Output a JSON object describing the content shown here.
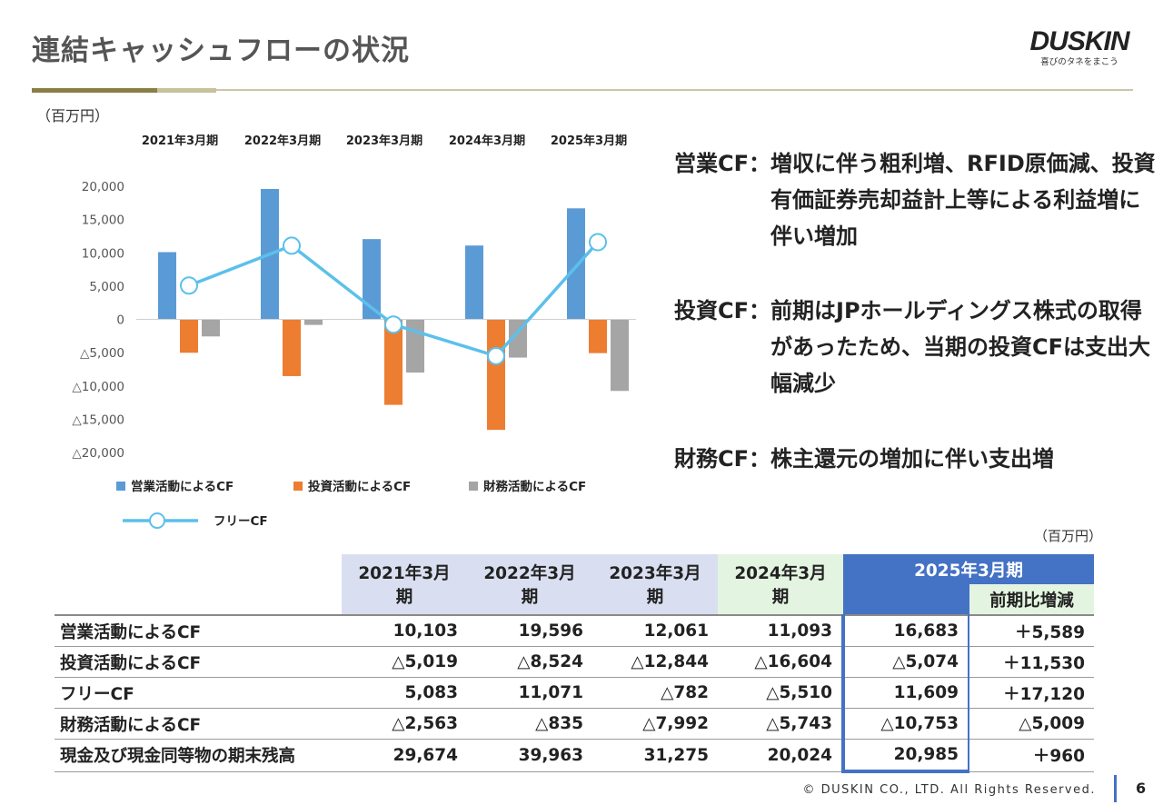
{
  "header": {
    "title": "連結キャッシュフローの状況",
    "logo_text": "DUSKIN",
    "logo_tagline": "喜びのタネをまこう"
  },
  "chart_unit": "（百万円）",
  "table_unit": "（百万円）",
  "chart_data": {
    "type": "bar",
    "categories": [
      "2021年3月期",
      "2022年3月期",
      "2023年3月期",
      "2024年3月期",
      "2025年3月期"
    ],
    "series": [
      {
        "name": "営業活動によるCF",
        "type": "bar",
        "color": "#5b9bd5",
        "values": [
          10103,
          19596,
          12061,
          11093,
          16683
        ]
      },
      {
        "name": "投資活動によるCF",
        "type": "bar",
        "color": "#ed7d31",
        "values": [
          -5019,
          -8524,
          -12844,
          -16604,
          -5074
        ]
      },
      {
        "name": "財務活動によるCF",
        "type": "bar",
        "color": "#a5a5a5",
        "values": [
          -2563,
          -835,
          -7992,
          -5743,
          -10753
        ]
      },
      {
        "name": "フリーCF",
        "type": "line",
        "color": "#5bc0eb",
        "values": [
          5083,
          11071,
          -782,
          -5510,
          11609
        ]
      }
    ],
    "ylim": [
      -20000,
      20000
    ],
    "yticks": [
      20000,
      15000,
      10000,
      5000,
      0,
      -5000,
      -10000,
      -15000,
      -20000
    ],
    "ytick_labels": [
      "20,000",
      "15,000",
      "10,000",
      "5,000",
      "0",
      "△5,000",
      "△10,000",
      "△15,000",
      "△20,000"
    ],
    "grid": false,
    "legend_position": "bottom"
  },
  "comments": [
    {
      "label": "営業CF：",
      "text": "増収に伴う粗利増、RFID原価減、投資有価証券売却益計上等による利益増に伴い増加"
    },
    {
      "label": "投資CF：",
      "text": "前期はJPホールディングス株式の取得があったため、当期の投資CFは支出大幅減少"
    },
    {
      "label": "財務CF：",
      "text": "株主還元の増加に伴い支出増"
    }
  ],
  "table": {
    "columns": [
      "2021年3月期",
      "2022年3月期",
      "2023年3月期",
      "2024年3月期",
      "2025年3月期"
    ],
    "diff_label": "前期比増減",
    "rows": [
      {
        "label": "営業活動によるCF",
        "values": [
          "10,103",
          "19,596",
          "12,061",
          "11,093",
          "16,683",
          "＋5,589"
        ]
      },
      {
        "label": "投資活動によるCF",
        "values": [
          "△5,019",
          "△8,524",
          "△12,844",
          "△16,604",
          "△5,074",
          "＋11,530"
        ]
      },
      {
        "label": "フリーCF",
        "values": [
          "5,083",
          "11,071",
          "△782",
          "△5,510",
          "11,609",
          "＋17,120"
        ]
      },
      {
        "label": "財務活動によるCF",
        "values": [
          "△2,563",
          "△835",
          "△7,992",
          "△5,743",
          "△10,753",
          "△5,009"
        ]
      },
      {
        "label": "現金及び現金同等物の期末残高",
        "values": [
          "29,674",
          "39,963",
          "31,275",
          "20,024",
          "20,985",
          "＋960"
        ]
      }
    ]
  },
  "footer": {
    "copyright": "© DUSKIN CO., LTD. All Rights Reserved.",
    "page": "6"
  }
}
